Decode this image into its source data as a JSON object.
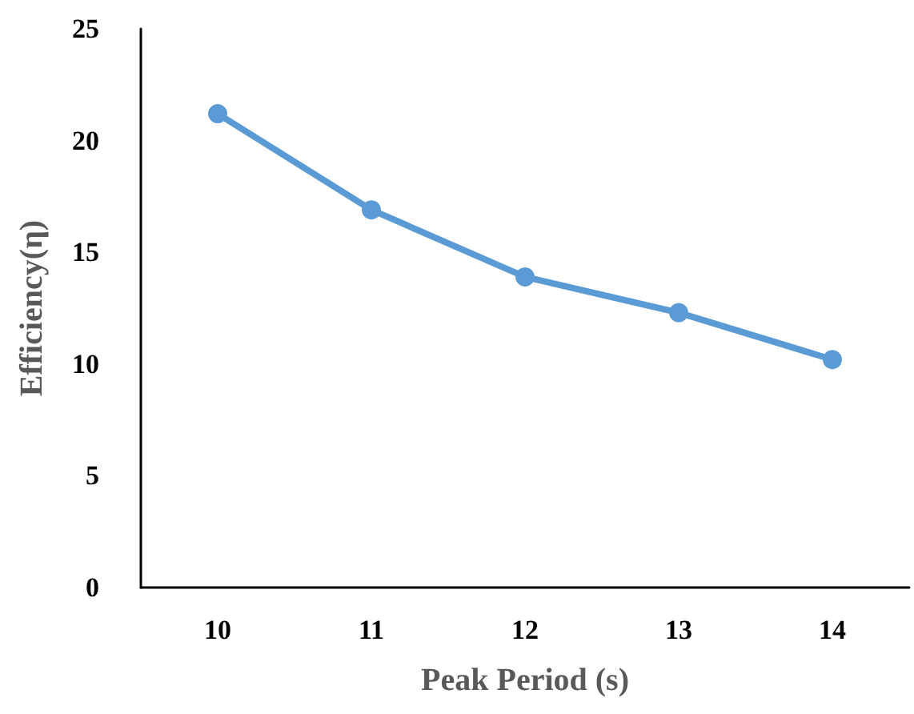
{
  "chart_data": {
    "type": "line",
    "xlabel": "Peak Period (s)",
    "ylabel": "Efficiency(η)",
    "categories": [
      "10",
      "11",
      "12",
      "13",
      "14"
    ],
    "series": [
      {
        "color": "#5b9bd5",
        "values": [
          21.2,
          16.9,
          13.9,
          12.3,
          10.2
        ]
      }
    ],
    "ylim": [
      0,
      25
    ],
    "yticks": [
      0,
      5,
      10,
      15,
      20,
      25
    ],
    "marker": "circle",
    "line_style": "solid"
  }
}
